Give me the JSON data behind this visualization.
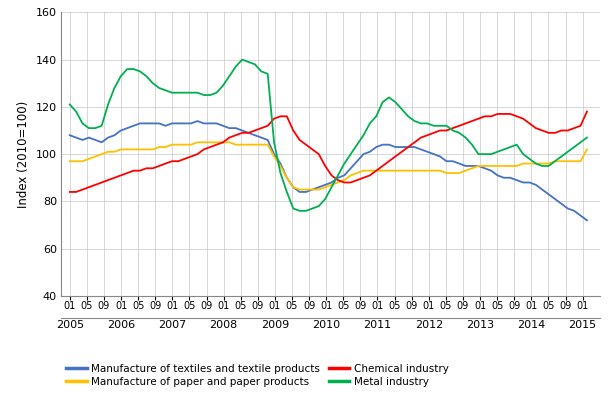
{
  "ylabel": "Index (2010=100)",
  "ylim": [
    40,
    160
  ],
  "yticks": [
    40,
    60,
    80,
    100,
    120,
    140,
    160
  ],
  "background_color": "#ffffff",
  "grid_color": "#c8c8c8",
  "colors": {
    "textiles": "#4472c4",
    "paper": "#ffc000",
    "chemical": "#ff0000",
    "metal": "#00b050"
  },
  "legend": [
    "Manufacture of textiles and textile products",
    "Manufacture of paper and paper products",
    "Chemical industry",
    "Metal industry"
  ],
  "textiles": [
    108,
    107,
    106,
    107,
    106,
    105,
    107,
    108,
    110,
    111,
    112,
    113,
    113,
    113,
    113,
    112,
    113,
    113,
    113,
    113,
    114,
    113,
    113,
    113,
    112,
    111,
    111,
    110,
    109,
    108,
    107,
    106,
    100,
    96,
    90,
    86,
    84,
    84,
    85,
    86,
    87,
    88,
    90,
    91,
    94,
    97,
    100,
    101,
    103,
    104,
    104,
    103,
    103,
    103,
    103,
    102,
    101,
    100,
    99,
    97,
    97,
    96,
    95,
    95,
    95,
    94,
    93,
    91,
    90,
    90,
    89,
    88,
    88,
    87,
    85,
    83,
    81,
    79,
    77,
    76,
    74,
    72
  ],
  "paper": [
    97,
    97,
    97,
    98,
    99,
    100,
    101,
    101,
    102,
    102,
    102,
    102,
    102,
    102,
    103,
    103,
    104,
    104,
    104,
    104,
    105,
    105,
    105,
    105,
    105,
    105,
    104,
    104,
    104,
    104,
    104,
    104,
    99,
    95,
    90,
    86,
    85,
    85,
    85,
    85,
    86,
    87,
    88,
    89,
    91,
    92,
    93,
    93,
    93,
    93,
    93,
    93,
    93,
    93,
    93,
    93,
    93,
    93,
    93,
    92,
    92,
    92,
    93,
    94,
    95,
    95,
    95,
    95,
    95,
    95,
    95,
    96,
    96,
    96,
    96,
    96,
    97,
    97,
    97,
    97,
    97,
    102
  ],
  "chemical": [
    84,
    84,
    85,
    86,
    87,
    88,
    89,
    90,
    91,
    92,
    93,
    93,
    94,
    94,
    95,
    96,
    97,
    97,
    98,
    99,
    100,
    102,
    103,
    104,
    105,
    107,
    108,
    109,
    109,
    110,
    111,
    112,
    115,
    116,
    116,
    110,
    106,
    104,
    102,
    100,
    95,
    91,
    89,
    88,
    88,
    89,
    90,
    91,
    93,
    95,
    97,
    99,
    101,
    103,
    105,
    107,
    108,
    109,
    110,
    110,
    111,
    112,
    113,
    114,
    115,
    116,
    116,
    117,
    117,
    117,
    116,
    115,
    113,
    111,
    110,
    109,
    109,
    110,
    110,
    111,
    112,
    118
  ],
  "metal": [
    121,
    118,
    113,
    111,
    111,
    112,
    121,
    128,
    133,
    136,
    136,
    135,
    133,
    130,
    128,
    127,
    126,
    126,
    126,
    126,
    126,
    125,
    125,
    126,
    129,
    133,
    137,
    140,
    139,
    138,
    135,
    134,
    105,
    92,
    84,
    77,
    76,
    76,
    77,
    78,
    81,
    86,
    91,
    96,
    100,
    104,
    108,
    113,
    116,
    122,
    124,
    122,
    119,
    116,
    114,
    113,
    113,
    112,
    112,
    112,
    110,
    109,
    107,
    104,
    100,
    100,
    100,
    101,
    102,
    103,
    104,
    100,
    98,
    96,
    95,
    95,
    97,
    99,
    101,
    103,
    105,
    107
  ],
  "start_year": 2005,
  "end_month_label": "01",
  "n_years": 11
}
